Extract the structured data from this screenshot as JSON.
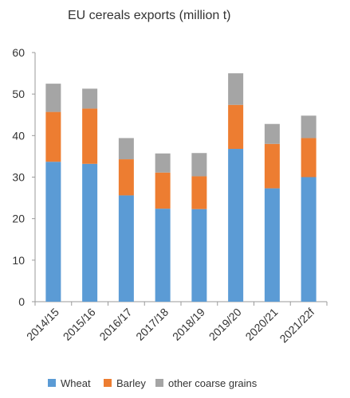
{
  "chart_data": {
    "type": "bar",
    "stacked": true,
    "title": "EU cereals exports (million t)",
    "xlabel": "",
    "ylabel": "",
    "ylim": [
      0,
      60
    ],
    "yticks": [
      0,
      10,
      20,
      30,
      40,
      50,
      60
    ],
    "grid": false,
    "legend": "bottom",
    "categories": [
      "2014/15",
      "2015/16",
      "2016/17",
      "2017/18",
      "2018/19",
      "2019/20",
      "2020/21",
      "2021/22f"
    ],
    "series": [
      {
        "name": "Wheat",
        "color": "#5b9bd5",
        "values": [
          33.7,
          33.2,
          25.6,
          22.4,
          22.3,
          36.8,
          27.3,
          30.0
        ]
      },
      {
        "name": "Barley",
        "color": "#ed7d31",
        "values": [
          12.0,
          13.3,
          8.7,
          8.7,
          7.9,
          10.6,
          10.7,
          9.4
        ]
      },
      {
        "name": "other coarse grains",
        "color": "#a5a5a5",
        "values": [
          6.8,
          4.8,
          5.1,
          4.6,
          5.6,
          7.6,
          4.8,
          5.4
        ]
      }
    ]
  }
}
